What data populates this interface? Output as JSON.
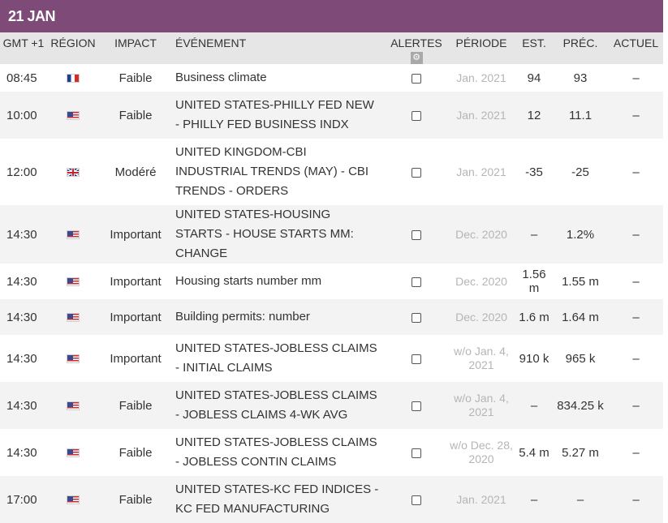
{
  "date_label": "21 JAN",
  "colors": {
    "header_bar": "#7e4a78",
    "column_header_bg": "#e6e6e6",
    "alt_row_bg": "#f3f3f3",
    "period_text": "#b5b5b5"
  },
  "columns": {
    "time": "GMT +1",
    "region": "RÉGION",
    "impact": "IMPACT",
    "event": "ÉVÉNEMENT",
    "alerts": "ALERTES",
    "alerts_icon": "gear-icon",
    "period": "PÉRIODE",
    "est": "EST.",
    "prev": "PRÉC.",
    "actual": "ACTUEL"
  },
  "rows": [
    {
      "time": "08:45",
      "flag": "flag-fr",
      "impact": "Faible",
      "event": "Business climate",
      "period": "Jan. 2021",
      "est": "94",
      "prev": "93",
      "actual": "–"
    },
    {
      "time": "10:00",
      "flag": "flag-us",
      "impact": "Faible",
      "event": "UNITED STATES-PHILLY FED NEW - PHILLY FED BUSINESS INDX",
      "period": "Jan. 2021",
      "est": "12",
      "prev": "11.1",
      "actual": "–"
    },
    {
      "time": "12:00",
      "flag": "flag-gb",
      "impact": "Modéré",
      "event": "UNITED KINGDOM-CBI INDUSTRIAL TRENDS (MAY) - CBI TRENDS - ORDERS",
      "period": "Jan. 2021",
      "est": "-35",
      "prev": "-25",
      "actual": "–"
    },
    {
      "time": "14:30",
      "flag": "flag-us",
      "impact": "Important",
      "event": "UNITED STATES-HOUSING STARTS - HOUSE STARTS MM: CHANGE",
      "period": "Dec. 2020",
      "est": "–",
      "prev": "1.2%",
      "actual": "–"
    },
    {
      "time": "14:30",
      "flag": "flag-us",
      "impact": "Important",
      "event": "Housing starts number mm",
      "period": "Dec. 2020",
      "est": "1.56 m",
      "prev": "1.55 m",
      "actual": "–"
    },
    {
      "time": "14:30",
      "flag": "flag-us",
      "impact": "Important",
      "event": "Building permits: number",
      "period": "Dec. 2020",
      "est": "1.6 m",
      "prev": "1.64 m",
      "actual": "–"
    },
    {
      "time": "14:30",
      "flag": "flag-us",
      "impact": "Important",
      "event": "UNITED STATES-JOBLESS CLAIMS - INITIAL CLAIMS",
      "period": "w/o Jan. 4, 2021",
      "est": "910 k",
      "prev": "965 k",
      "actual": "–"
    },
    {
      "time": "14:30",
      "flag": "flag-us",
      "impact": "Faible",
      "event": "UNITED STATES-JOBLESS CLAIMS - JOBLESS CLAIMS 4-WK AVG",
      "period": "w/o Jan. 4, 2021",
      "est": "–",
      "prev": "834.25 k",
      "actual": "–"
    },
    {
      "time": "14:30",
      "flag": "flag-us",
      "impact": "Faible",
      "event": "UNITED STATES-JOBLESS CLAIMS - JOBLESS CONTIN CLAIMS",
      "period": "w/o Dec. 28, 2020",
      "est": "5.4 m",
      "prev": "5.27 m",
      "actual": "–"
    },
    {
      "time": "17:00",
      "flag": "flag-us",
      "impact": "Faible",
      "event": "UNITED STATES-KC FED INDICES - KC FED MANUFACTURING",
      "period": "Jan. 2021",
      "est": "–",
      "prev": "–",
      "actual": "–"
    }
  ]
}
